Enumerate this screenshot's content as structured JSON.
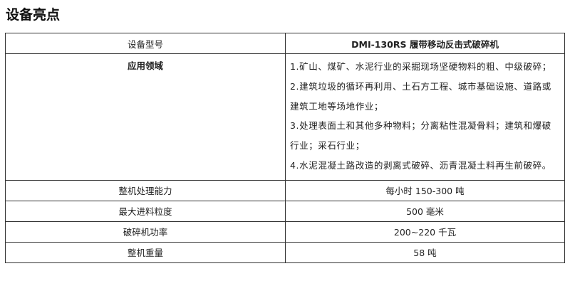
{
  "title": "设备亮点",
  "table": {
    "header": {
      "label": "设备型号",
      "value": "DMI-130RS 履带移动反击式破碎机"
    },
    "application": {
      "label": "应用领域",
      "items": [
        "1.矿山、煤矿、水泥行业的采掘现场坚硬物料的粗、中级破碎；",
        "2.建筑垃圾的循环再利用、土石方工程、城市基础设施、道路或建筑工地等场地作业；",
        "3.处理表面土和其他多种物料；分离粘性混凝骨料；建筑和爆破行业；采石行业；",
        "4.水泥混凝土路改造的剥离式破碎、沥青混凝土料再生前破碎。"
      ]
    },
    "rows": [
      {
        "label": "整机处理能力",
        "value": "每小时 150-300 吨"
      },
      {
        "label": "最大进料粒度",
        "value": "500 毫米"
      },
      {
        "label": "破碎机功率",
        "value": "200~220 千瓦"
      },
      {
        "label": "整机重量",
        "value": "58 吨"
      }
    ]
  }
}
